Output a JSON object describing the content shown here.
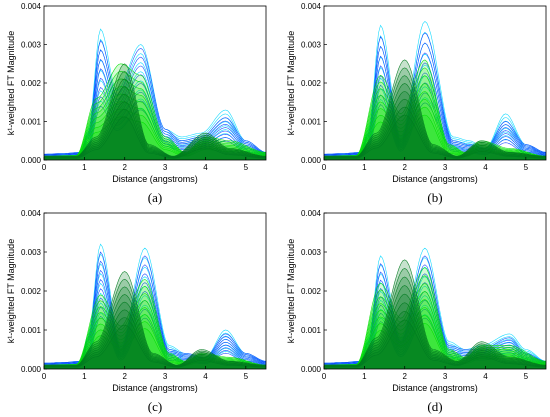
{
  "chart_data": [
    {
      "type": "area",
      "panel_label": "(a)",
      "xlabel": "Distance (angstroms)",
      "ylabel": "k¹-weighted FT Magnitude",
      "xlim": [
        0,
        5.5
      ],
      "ylim": [
        0,
        0.004
      ],
      "x_ticks": [
        0,
        1,
        2,
        3,
        4,
        5
      ],
      "y_ticks": [
        0.0,
        0.001,
        0.002,
        0.003,
        0.004
      ],
      "grid": false,
      "series": [
        {
          "color": "#00d7ff",
          "values": [
            [
              0,
              0.00015
            ],
            [
              0.5,
              0.00017
            ],
            [
              0.9,
              0.0002
            ],
            [
              1.1,
              0.0008
            ],
            [
              1.4,
              0.0034
            ],
            [
              1.8,
              0.0018
            ],
            [
              2.4,
              0.003
            ],
            [
              3.0,
              0.0008
            ],
            [
              3.4,
              0.0006
            ],
            [
              3.9,
              0.0007
            ],
            [
              4.5,
              0.0013
            ],
            [
              5.0,
              0.0005
            ],
            [
              5.5,
              0.0002
            ]
          ]
        },
        {
          "color": "#1040ff",
          "values": [
            [
              0,
              0.00015
            ],
            [
              0.5,
              0.00017
            ],
            [
              0.9,
              0.0002
            ],
            [
              1.1,
              0.0007
            ],
            [
              1.4,
              0.0031
            ],
            [
              1.8,
              0.0017
            ],
            [
              2.4,
              0.0029
            ],
            [
              3.0,
              0.0008
            ],
            [
              3.4,
              0.0005
            ],
            [
              3.9,
              0.0006
            ],
            [
              4.5,
              0.0011
            ],
            [
              5.0,
              0.0005
            ],
            [
              5.5,
              0.0002
            ]
          ]
        },
        {
          "color": "#00e000",
          "values": [
            [
              0,
              0.0001
            ],
            [
              0.8,
              0.00012
            ],
            [
              1.3,
              0.0016
            ],
            [
              1.9,
              0.0025
            ],
            [
              2.4,
              0.0022
            ],
            [
              3.0,
              0.0006
            ],
            [
              3.5,
              0.0002
            ],
            [
              4.0,
              0.0006
            ],
            [
              4.6,
              0.0005
            ],
            [
              5.5,
              0.0002
            ]
          ]
        },
        {
          "color": "#007a1e",
          "values": [
            [
              0,
              0.0001
            ],
            [
              0.8,
              0.0001
            ],
            [
              1.3,
              0.0006
            ],
            [
              2.0,
              0.0025
            ],
            [
              2.6,
              0.0004
            ],
            [
              3.2,
              0.0001
            ],
            [
              4.0,
              0.0007
            ],
            [
              4.6,
              0.0003
            ],
            [
              5.5,
              0.0001
            ]
          ]
        }
      ]
    },
    {
      "type": "area",
      "panel_label": "(b)",
      "xlabel": "Distance (angstroms)",
      "ylabel": "k¹-weighted FT Magnitude",
      "xlim": [
        0,
        5.5
      ],
      "ylim": [
        0,
        0.004
      ],
      "x_ticks": [
        0,
        1,
        2,
        3,
        4,
        5
      ],
      "y_ticks": [
        0.0,
        0.001,
        0.002,
        0.003,
        0.004
      ],
      "grid": false,
      "series": [
        {
          "color": "#00d7ff",
          "values": [
            [
              0,
              0.00015
            ],
            [
              0.5,
              0.00017
            ],
            [
              0.9,
              0.0002
            ],
            [
              1.1,
              0.0008
            ],
            [
              1.4,
              0.0035
            ],
            [
              1.9,
              0.0006
            ],
            [
              2.5,
              0.0036
            ],
            [
              3.2,
              0.0006
            ],
            [
              3.6,
              0.0005
            ],
            [
              4.0,
              0.0003
            ],
            [
              4.5,
              0.0012
            ],
            [
              5.0,
              0.0004
            ],
            [
              5.5,
              0.0002
            ]
          ]
        },
        {
          "color": "#1040ff",
          "values": [
            [
              0,
              0.00015
            ],
            [
              0.5,
              0.00017
            ],
            [
              0.9,
              0.0002
            ],
            [
              1.1,
              0.0007
            ],
            [
              1.4,
              0.0032
            ],
            [
              1.9,
              0.0005
            ],
            [
              2.5,
              0.0033
            ],
            [
              3.2,
              0.0005
            ],
            [
              3.6,
              0.0004
            ],
            [
              4.0,
              0.0003
            ],
            [
              4.5,
              0.001
            ],
            [
              5.0,
              0.0004
            ],
            [
              5.5,
              0.0002
            ]
          ]
        },
        {
          "color": "#00e000",
          "values": [
            [
              0,
              0.0001
            ],
            [
              0.8,
              0.00012
            ],
            [
              1.4,
              0.0022
            ],
            [
              1.9,
              0.0012
            ],
            [
              2.5,
              0.0026
            ],
            [
              3.1,
              0.0004
            ],
            [
              3.5,
              0.0002
            ],
            [
              3.9,
              0.0005
            ],
            [
              4.6,
              0.0003
            ],
            [
              5.5,
              0.0001
            ]
          ]
        },
        {
          "color": "#007a1e",
          "values": [
            [
              0,
              0.0001
            ],
            [
              0.8,
              0.0001
            ],
            [
              1.3,
              0.0007
            ],
            [
              2.0,
              0.0026
            ],
            [
              2.7,
              0.0004
            ],
            [
              3.3,
              0.0001
            ],
            [
              3.9,
              0.0005
            ],
            [
              4.6,
              0.0002
            ],
            [
              5.5,
              0.0001
            ]
          ]
        }
      ]
    },
    {
      "type": "area",
      "panel_label": "(c)",
      "xlabel": "Distance (angstroms)",
      "ylabel": "k¹-weighted FT Magnitude",
      "xlim": [
        0,
        5.5
      ],
      "ylim": [
        0,
        0.004
      ],
      "x_ticks": [
        0,
        1,
        2,
        3,
        4,
        5
      ],
      "y_ticks": [
        0.0,
        0.001,
        0.002,
        0.003,
        0.004
      ],
      "grid": false,
      "series": [
        {
          "color": "#00d7ff",
          "values": [
            [
              0,
              0.00015
            ],
            [
              0.5,
              0.00017
            ],
            [
              0.9,
              0.0002
            ],
            [
              1.1,
              0.0009
            ],
            [
              1.4,
              0.0032
            ],
            [
              1.9,
              0.0006
            ],
            [
              2.5,
              0.0031
            ],
            [
              3.1,
              0.0006
            ],
            [
              3.5,
              0.0004
            ],
            [
              4.0,
              0.0003
            ],
            [
              4.5,
              0.001
            ],
            [
              5.0,
              0.0004
            ],
            [
              5.5,
              0.0002
            ]
          ]
        },
        {
          "color": "#1040ff",
          "values": [
            [
              0,
              0.00015
            ],
            [
              0.5,
              0.00017
            ],
            [
              0.9,
              0.0002
            ],
            [
              1.1,
              0.0008
            ],
            [
              1.4,
              0.003
            ],
            [
              1.9,
              0.0005
            ],
            [
              2.5,
              0.0029
            ],
            [
              3.1,
              0.0005
            ],
            [
              3.5,
              0.0004
            ],
            [
              4.0,
              0.0003
            ],
            [
              4.5,
              0.0009
            ],
            [
              5.0,
              0.0004
            ],
            [
              5.5,
              0.0002
            ]
          ]
        },
        {
          "color": "#00e000",
          "values": [
            [
              0,
              0.0001
            ],
            [
              0.8,
              0.00012
            ],
            [
              1.4,
              0.0019
            ],
            [
              1.9,
              0.0011
            ],
            [
              2.5,
              0.0023
            ],
            [
              3.1,
              0.0004
            ],
            [
              3.5,
              0.0002
            ],
            [
              3.9,
              0.0004
            ],
            [
              4.6,
              0.0003
            ],
            [
              5.5,
              0.0001
            ]
          ]
        },
        {
          "color": "#007a1e",
          "values": [
            [
              0,
              0.0001
            ],
            [
              0.8,
              0.0001
            ],
            [
              1.3,
              0.0007
            ],
            [
              2.0,
              0.0025
            ],
            [
              2.7,
              0.0004
            ],
            [
              3.3,
              0.0001
            ],
            [
              3.9,
              0.0005
            ],
            [
              4.6,
              0.0002
            ],
            [
              5.5,
              0.0001
            ]
          ]
        }
      ]
    },
    {
      "type": "area",
      "panel_label": "(d)",
      "xlabel": "Distance (angstroms)",
      "ylabel": "k¹-weighted FT Magnitude",
      "xlim": [
        0,
        5.5
      ],
      "ylim": [
        0,
        0.004
      ],
      "x_ticks": [
        0,
        1,
        2,
        3,
        4,
        5
      ],
      "y_ticks": [
        0.0,
        0.001,
        0.002,
        0.003,
        0.004
      ],
      "grid": false,
      "series": [
        {
          "color": "#00d7ff",
          "values": [
            [
              0,
              0.00015
            ],
            [
              0.5,
              0.00017
            ],
            [
              0.9,
              0.0002
            ],
            [
              1.1,
              0.0008
            ],
            [
              1.4,
              0.0029
            ],
            [
              1.9,
              0.0008
            ],
            [
              2.5,
              0.0031
            ],
            [
              3.1,
              0.0007
            ],
            [
              3.5,
              0.0005
            ],
            [
              3.9,
              0.0006
            ],
            [
              4.6,
              0.0009
            ],
            [
              5.0,
              0.0005
            ],
            [
              5.5,
              0.0002
            ]
          ]
        },
        {
          "color": "#1040ff",
          "values": [
            [
              0,
              0.00015
            ],
            [
              0.5,
              0.00017
            ],
            [
              0.9,
              0.0002
            ],
            [
              1.1,
              0.0007
            ],
            [
              1.4,
              0.0027
            ],
            [
              1.9,
              0.0007
            ],
            [
              2.5,
              0.0029
            ],
            [
              3.1,
              0.0006
            ],
            [
              3.5,
              0.0005
            ],
            [
              3.9,
              0.0005
            ],
            [
              4.6,
              0.0008
            ],
            [
              5.0,
              0.0004
            ],
            [
              5.5,
              0.0002
            ]
          ]
        },
        {
          "color": "#00e000",
          "values": [
            [
              0,
              0.0001
            ],
            [
              0.8,
              0.00012
            ],
            [
              1.4,
              0.0022
            ],
            [
              1.9,
              0.0013
            ],
            [
              2.5,
              0.0026
            ],
            [
              3.1,
              0.0005
            ],
            [
              3.5,
              0.0003
            ],
            [
              3.9,
              0.0006
            ],
            [
              4.6,
              0.0006
            ],
            [
              5.5,
              0.0002
            ]
          ]
        },
        {
          "color": "#007a1e",
          "values": [
            [
              0,
              0.0001
            ],
            [
              0.8,
              0.0001
            ],
            [
              1.3,
              0.0008
            ],
            [
              2.0,
              0.0028
            ],
            [
              2.7,
              0.0005
            ],
            [
              3.3,
              0.0002
            ],
            [
              3.9,
              0.0007
            ],
            [
              4.6,
              0.0003
            ],
            [
              5.5,
              0.0001
            ]
          ]
        }
      ]
    }
  ]
}
